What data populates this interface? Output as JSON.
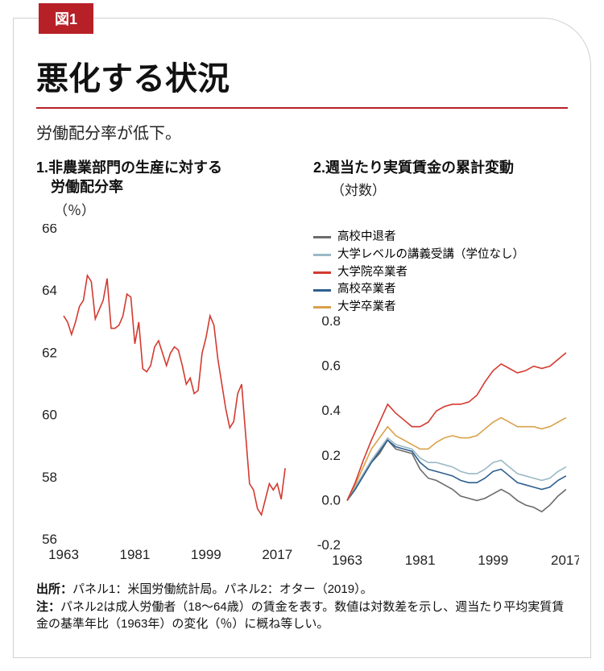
{
  "tag": "図1",
  "title": "悪化する状況",
  "subtitle": "労働配分率が低下。",
  "colors": {
    "accent": "#b82028",
    "text": "#111111",
    "axis": "#444444",
    "card_border": "#d0d0d0"
  },
  "panel1": {
    "title": "1.非農業部門の生産に対する\n　労働配分率",
    "unit": "（％）",
    "type": "line",
    "xlim": [
      1963,
      2020
    ],
    "ylim": [
      56,
      66
    ],
    "yticks": [
      56,
      58,
      60,
      62,
      64,
      66
    ],
    "xticks": [
      1963,
      1981,
      1999,
      2017
    ],
    "line_color": "#d33a2f",
    "line_width": 1.6,
    "data": {
      "x": [
        1963,
        1964,
        1965,
        1966,
        1967,
        1968,
        1969,
        1970,
        1971,
        1972,
        1973,
        1974,
        1975,
        1976,
        1977,
        1978,
        1979,
        1980,
        1981,
        1982,
        1983,
        1984,
        1985,
        1986,
        1987,
        1988,
        1989,
        1990,
        1991,
        1992,
        1993,
        1994,
        1995,
        1996,
        1997,
        1998,
        1999,
        2000,
        2001,
        2002,
        2003,
        2004,
        2005,
        2006,
        2007,
        2008,
        2009,
        2010,
        2011,
        2012,
        2013,
        2014,
        2015,
        2016,
        2017,
        2018,
        2019
      ],
      "y": [
        63.2,
        63.0,
        62.6,
        63.0,
        63.5,
        63.7,
        64.5,
        64.3,
        63.1,
        63.4,
        63.7,
        64.4,
        62.8,
        62.8,
        62.9,
        63.2,
        63.9,
        63.8,
        62.3,
        63.0,
        61.5,
        61.4,
        61.6,
        62.2,
        62.4,
        62.0,
        61.6,
        62.0,
        62.2,
        62.1,
        61.6,
        61.0,
        61.2,
        60.7,
        60.8,
        62.0,
        62.5,
        63.2,
        62.9,
        61.8,
        61.0,
        60.2,
        59.6,
        59.8,
        60.7,
        61.0,
        59.4,
        57.8,
        57.6,
        57.0,
        56.8,
        57.3,
        57.8,
        57.6,
        57.8,
        57.3,
        58.3
      ]
    }
  },
  "panel2": {
    "title": "2.週当たり実質賃金の累計変動",
    "unit": "（対数）",
    "type": "line",
    "xlim": [
      1963,
      2019
    ],
    "ylim": [
      -0.2,
      0.8
    ],
    "yticks": [
      -0.2,
      0.0,
      0.2,
      0.4,
      0.6,
      0.8
    ],
    "xticks": [
      1963,
      1981,
      1999,
      2017
    ],
    "legend": [
      {
        "label": "高校中退者",
        "color": "#6b6b6b"
      },
      {
        "label": "大学レベルの講義受講（学位なし）",
        "color": "#9bb9c6"
      },
      {
        "label": "大学院卒業者",
        "color": "#d33a2f"
      },
      {
        "label": "高校卒業者",
        "color": "#2f5f8f"
      },
      {
        "label": "大学卒業者",
        "color": "#d9a14a"
      }
    ],
    "line_width": 1.6,
    "series": {
      "hs_dropout": {
        "color": "#6b6b6b",
        "x": [
          1963,
          1965,
          1967,
          1969,
          1971,
          1973,
          1975,
          1977,
          1979,
          1981,
          1983,
          1985,
          1987,
          1989,
          1991,
          1993,
          1995,
          1997,
          1999,
          2001,
          2003,
          2005,
          2007,
          2009,
          2011,
          2013,
          2015,
          2017
        ],
        "y": [
          0,
          0.05,
          0.11,
          0.17,
          0.21,
          0.27,
          0.23,
          0.22,
          0.21,
          0.14,
          0.1,
          0.09,
          0.07,
          0.05,
          0.02,
          0.01,
          0.0,
          0.01,
          0.03,
          0.05,
          0.03,
          0.0,
          -0.02,
          -0.03,
          -0.05,
          -0.02,
          0.02,
          0.05
        ]
      },
      "some_college": {
        "color": "#9bb9c6",
        "x": [
          1963,
          1965,
          1967,
          1969,
          1971,
          1973,
          1975,
          1977,
          1979,
          1981,
          1983,
          1985,
          1987,
          1989,
          1991,
          1993,
          1995,
          1997,
          1999,
          2001,
          2003,
          2005,
          2007,
          2009,
          2011,
          2013,
          2015,
          2017
        ],
        "y": [
          0,
          0.06,
          0.12,
          0.18,
          0.23,
          0.28,
          0.25,
          0.24,
          0.23,
          0.19,
          0.17,
          0.17,
          0.16,
          0.15,
          0.13,
          0.12,
          0.12,
          0.14,
          0.17,
          0.18,
          0.15,
          0.12,
          0.11,
          0.1,
          0.09,
          0.1,
          0.13,
          0.15
        ]
      },
      "hs_grad": {
        "color": "#2f5f8f",
        "x": [
          1963,
          1965,
          1967,
          1969,
          1971,
          1973,
          1975,
          1977,
          1979,
          1981,
          1983,
          1985,
          1987,
          1989,
          1991,
          1993,
          1995,
          1997,
          1999,
          2001,
          2003,
          2005,
          2007,
          2009,
          2011,
          2013,
          2015,
          2017
        ],
        "y": [
          0,
          0.05,
          0.11,
          0.17,
          0.22,
          0.27,
          0.24,
          0.23,
          0.22,
          0.17,
          0.14,
          0.13,
          0.12,
          0.11,
          0.09,
          0.08,
          0.08,
          0.1,
          0.13,
          0.14,
          0.11,
          0.08,
          0.07,
          0.06,
          0.05,
          0.06,
          0.09,
          0.11
        ]
      },
      "college_grad": {
        "color": "#d9a14a",
        "x": [
          1963,
          1965,
          1967,
          1969,
          1971,
          1973,
          1975,
          1977,
          1979,
          1981,
          1983,
          1985,
          1987,
          1989,
          1991,
          1993,
          1995,
          1997,
          1999,
          2001,
          2003,
          2005,
          2007,
          2009,
          2011,
          2013,
          2015,
          2017
        ],
        "y": [
          0,
          0.07,
          0.15,
          0.23,
          0.28,
          0.33,
          0.29,
          0.27,
          0.25,
          0.23,
          0.23,
          0.26,
          0.28,
          0.29,
          0.28,
          0.28,
          0.29,
          0.32,
          0.35,
          0.37,
          0.35,
          0.33,
          0.33,
          0.33,
          0.32,
          0.33,
          0.35,
          0.37
        ]
      },
      "postgrad": {
        "color": "#d33a2f",
        "x": [
          1963,
          1965,
          1967,
          1969,
          1971,
          1973,
          1975,
          1977,
          1979,
          1981,
          1983,
          1985,
          1987,
          1989,
          1991,
          1993,
          1995,
          1997,
          1999,
          2001,
          2003,
          2005,
          2007,
          2009,
          2011,
          2013,
          2015,
          2017
        ],
        "y": [
          0,
          0.08,
          0.18,
          0.27,
          0.35,
          0.43,
          0.39,
          0.36,
          0.33,
          0.33,
          0.35,
          0.4,
          0.42,
          0.43,
          0.43,
          0.44,
          0.47,
          0.53,
          0.58,
          0.61,
          0.59,
          0.57,
          0.58,
          0.6,
          0.59,
          0.6,
          0.63,
          0.66
        ]
      }
    }
  },
  "footer": {
    "source_label": "出所：",
    "source_text": "パネル1：米国労働統計局。パネル2：オター（2019）。",
    "note_label": "注：",
    "note_text": "パネル2は成人労働者（18～64歳）の賃金を表す。数値は対数差を示し、週当たり平均実質賃金の基準年比（1963年）の変化（％）に概ね等しい。"
  }
}
